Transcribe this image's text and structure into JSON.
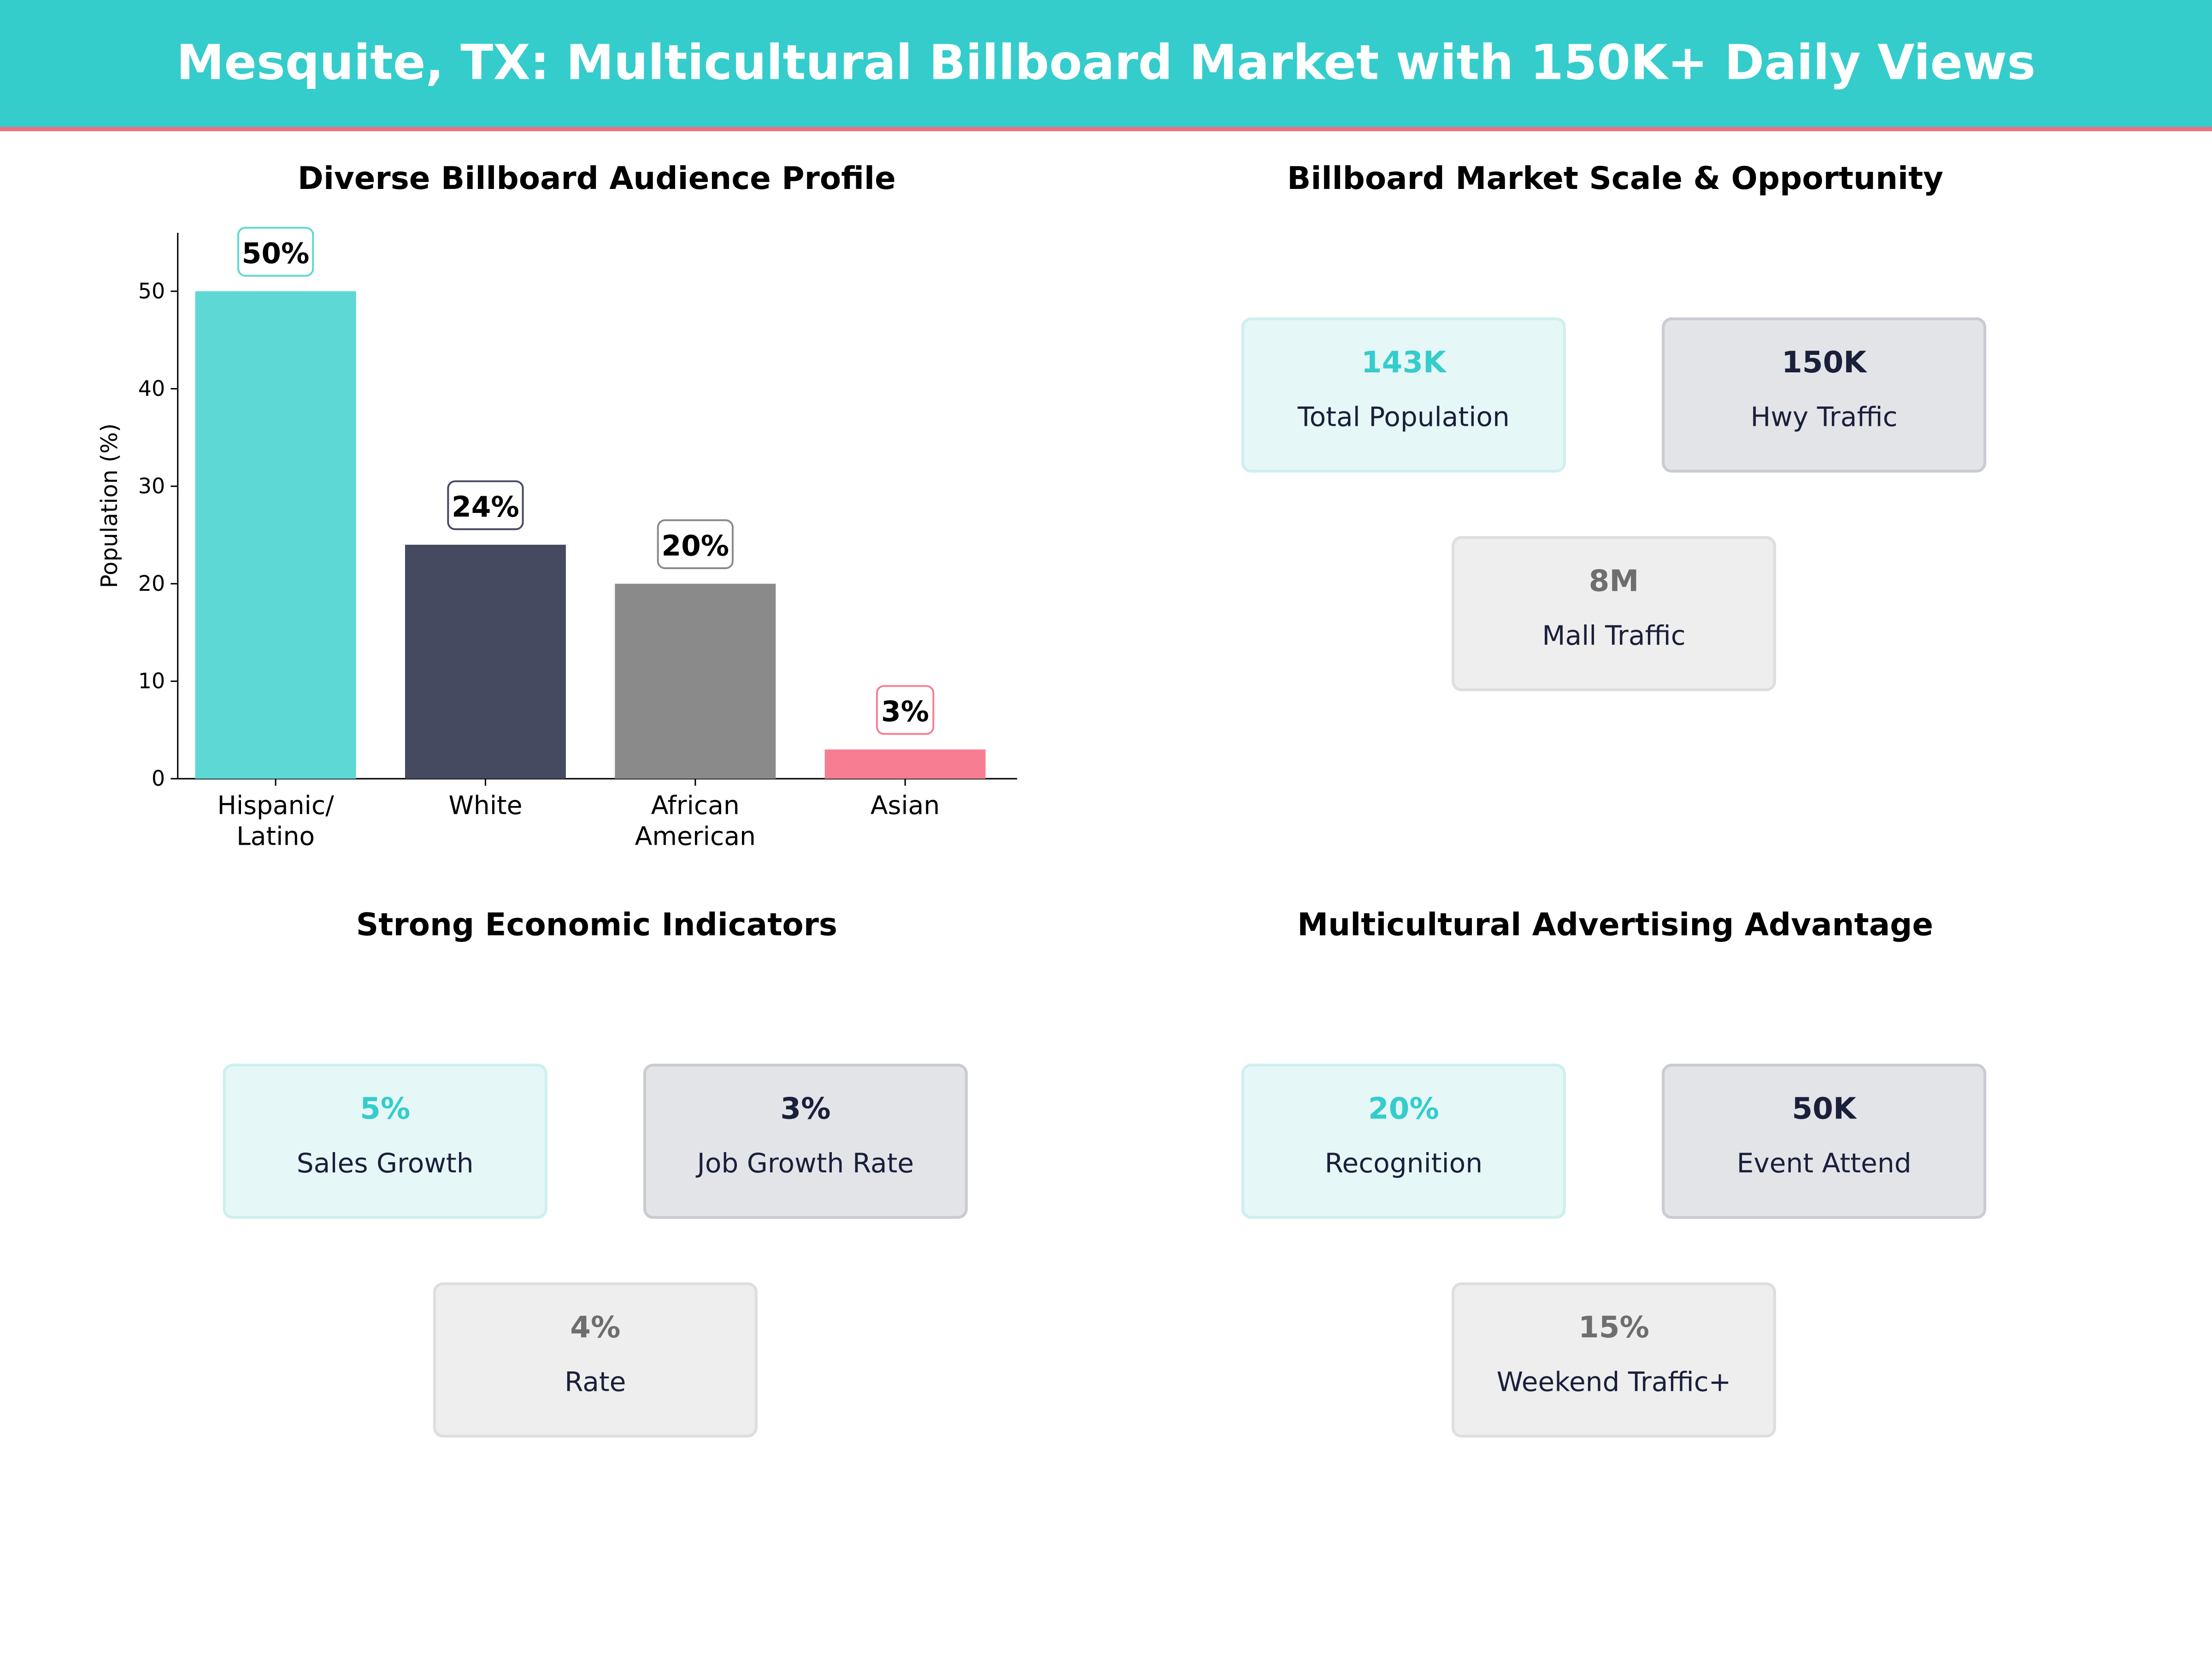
{
  "header": {
    "title": "Mesquite, TX: Multicultural Billboard Market with 150K+ Daily Views"
  },
  "chart_data": {
    "type": "bar",
    "title": "Diverse Billboard Audience Profile",
    "xlabel": "",
    "ylabel": "Population (%)",
    "categories": [
      "Hispanic/\nLatino",
      "White",
      "African\nAmerican",
      "Asian"
    ],
    "values": [
      50,
      24,
      20,
      3
    ],
    "data_labels": [
      "50%",
      "24%",
      "20%",
      "3%"
    ],
    "colors": [
      "#5DD8D4",
      "#464A60",
      "#8A8A8A",
      "#F77E92"
    ],
    "label_border_colors": [
      "#5DD8D4",
      "#464A60",
      "#8A8A8A",
      "#F77E92"
    ],
    "ylim": [
      0,
      56
    ],
    "yticks": [
      0,
      10,
      20,
      30,
      40,
      50
    ],
    "grid": false
  },
  "panels": {
    "market": {
      "title": "Billboard Market Scale & Opportunity",
      "cards": [
        {
          "value": "143K",
          "label": "Total Population"
        },
        {
          "value": "150K",
          "label": "Hwy Traffic"
        },
        {
          "value": "8M",
          "label": "Mall Traffic"
        }
      ]
    },
    "economic": {
      "title": "Strong Economic Indicators",
      "cards": [
        {
          "value": "5%",
          "label": "Sales Growth"
        },
        {
          "value": "3%",
          "label": "Job Growth Rate"
        },
        {
          "value": "4%",
          "label": "Rate"
        }
      ]
    },
    "multicultural": {
      "title": "Multicultural Advertising Advantage",
      "cards": [
        {
          "value": "20%",
          "label": "Recognition"
        },
        {
          "value": "50K",
          "label": "Event Attend"
        },
        {
          "value": "15%",
          "label": "Weekend Traffic+"
        }
      ]
    }
  }
}
